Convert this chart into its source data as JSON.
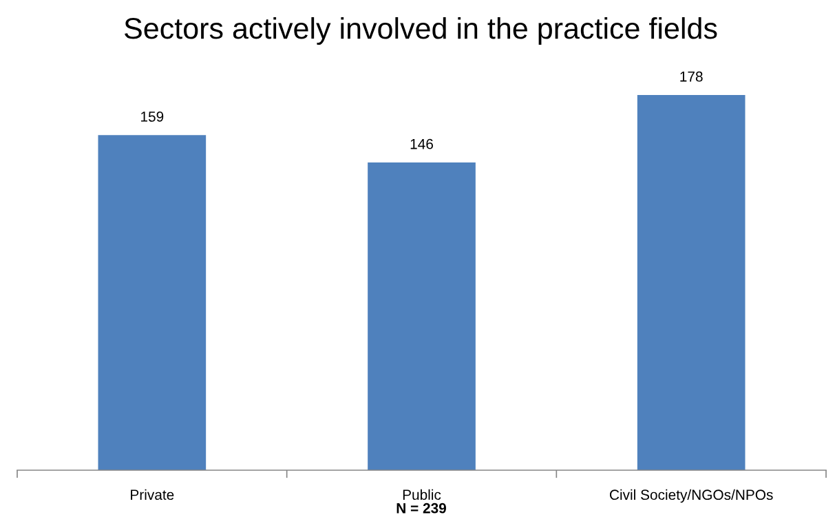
{
  "chart_data": {
    "type": "bar",
    "title": "Sectors actively involved in the practice fields",
    "categories": [
      "Private",
      "Public",
      "Civil Society/NGOs/NPOs"
    ],
    "values": [
      159,
      146,
      178
    ],
    "color": "#4f81bd",
    "data_labels": true,
    "annotations": [
      "N = 239"
    ]
  }
}
